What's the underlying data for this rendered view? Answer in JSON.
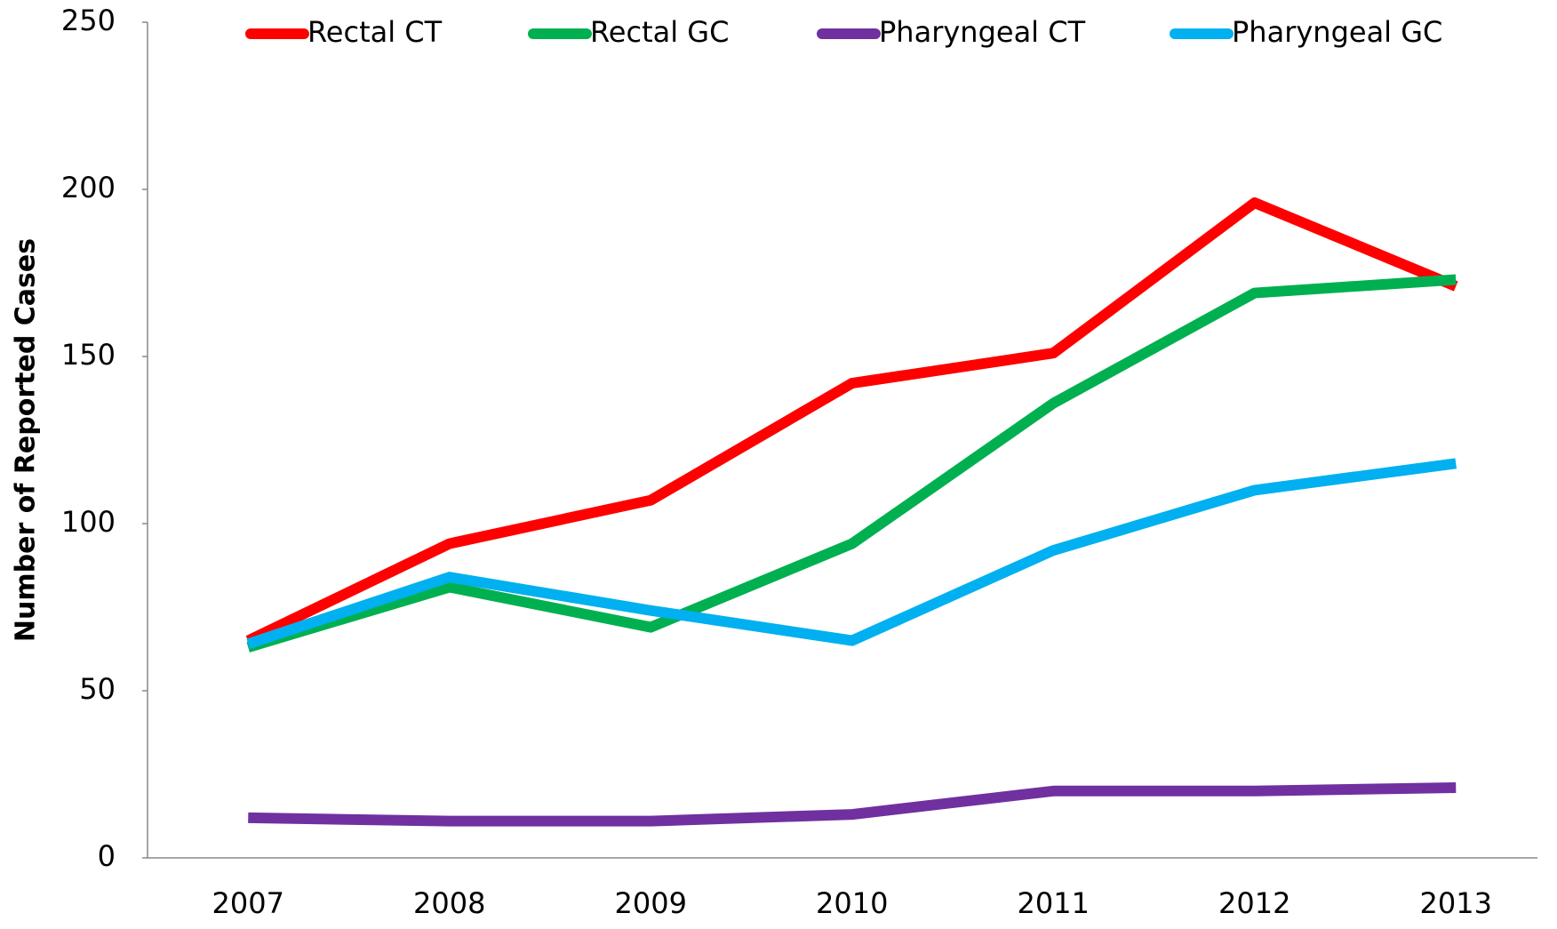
{
  "chart_data": {
    "type": "line",
    "y_label": "Number of Reported Cases",
    "categories": [
      "2007",
      "2008",
      "2009",
      "2010",
      "2011",
      "2012",
      "2013"
    ],
    "series": [
      {
        "name": "Rectal CT",
        "color": "#ff0000",
        "values": [
          65,
          94,
          107,
          142,
          151,
          196,
          171
        ]
      },
      {
        "name": "Rectal GC",
        "color": "#00b050",
        "values": [
          63,
          81,
          69,
          94,
          136,
          169,
          173
        ]
      },
      {
        "name": "Pharyngeal CT",
        "color": "#7030a0",
        "values": [
          12,
          11,
          11,
          13,
          20,
          20,
          21
        ]
      },
      {
        "name": "Pharyngeal GC",
        "color": "#00b0f0",
        "values": [
          64,
          84,
          74,
          65,
          92,
          110,
          118
        ]
      }
    ],
    "ylim": [
      0,
      250
    ],
    "yticks": [
      0,
      50,
      100,
      150,
      200,
      250
    ],
    "grid": false,
    "legend": "top"
  }
}
